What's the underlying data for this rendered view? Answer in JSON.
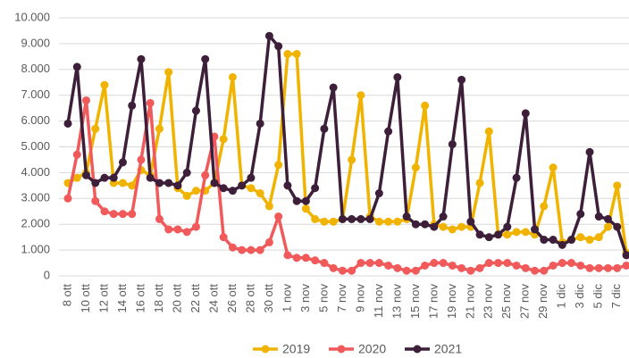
{
  "chart_data": {
    "type": "line",
    "categories": [
      "8 ott",
      null,
      "10 ott",
      null,
      "12 ott",
      null,
      "14 ott",
      null,
      "16 ott",
      null,
      "18 ott",
      null,
      "20 ott",
      null,
      "22 ott",
      null,
      "24 ott",
      null,
      "26 ott",
      null,
      "28 ott",
      null,
      "30 ott",
      null,
      "1 nov",
      null,
      "3 nov",
      null,
      "5 nov",
      null,
      "7 nov",
      null,
      "9 nov",
      null,
      "11 nov",
      null,
      "13 nov",
      null,
      "15 nov",
      null,
      "17 nov",
      null,
      "19 nov",
      null,
      "21 nov",
      null,
      "23 nov",
      null,
      "25 nov",
      null,
      "27 nov",
      null,
      "29 nov",
      null,
      "1 dic",
      null,
      "3 dic",
      null,
      "5 dic",
      null,
      "7 dic",
      null
    ],
    "series": [
      {
        "name": "2019",
        "color": "#f0b400",
        "values": [
          3600,
          3800,
          4000,
          5700,
          7400,
          3600,
          3600,
          3500,
          4100,
          3900,
          5700,
          7900,
          3400,
          3100,
          3300,
          3300,
          3600,
          5300,
          7700,
          3500,
          3400,
          3200,
          2700,
          4300,
          8600,
          8600,
          2600,
          2200,
          2100,
          2100,
          2200,
          4500,
          7000,
          2300,
          2100,
          2100,
          2100,
          2200,
          4200,
          6600,
          2000,
          1900,
          1800,
          1900,
          1900,
          3600,
          5600,
          1600,
          1600,
          1700,
          1700,
          1600,
          2700,
          4200,
          1300,
          1400,
          1500,
          1400,
          1500,
          1900,
          3500,
          900
        ]
      },
      {
        "name": "2020",
        "color": "#f05a5a",
        "values": [
          3000,
          4700,
          6800,
          2900,
          2500,
          2400,
          2400,
          2400,
          4500,
          6700,
          2200,
          1800,
          1800,
          1700,
          1900,
          3900,
          5400,
          1500,
          1100,
          1000,
          1000,
          1000,
          1300,
          2300,
          800,
          700,
          700,
          600,
          500,
          300,
          200,
          200,
          500,
          500,
          500,
          400,
          300,
          200,
          200,
          400,
          500,
          500,
          400,
          300,
          200,
          300,
          500,
          500,
          500,
          400,
          300,
          200,
          200,
          400,
          500,
          500,
          400,
          300,
          300,
          300,
          300,
          400
        ]
      },
      {
        "name": "2021",
        "color": "#3d1f3a",
        "values": [
          5900,
          8100,
          3900,
          3600,
          3800,
          3800,
          4400,
          6600,
          8400,
          3800,
          3600,
          3600,
          3500,
          4000,
          6400,
          8400,
          3600,
          3400,
          3300,
          3500,
          3800,
          5900,
          9300,
          8900,
          3500,
          2900,
          2900,
          3400,
          5700,
          7300,
          2200,
          2200,
          2200,
          2200,
          3200,
          5600,
          7700,
          2300,
          2000,
          2000,
          1900,
          2300,
          5100,
          7600,
          2100,
          1600,
          1500,
          1600,
          1900,
          3800,
          6300,
          1800,
          1400,
          1400,
          1200,
          1400,
          2400,
          4800,
          2300,
          2200,
          1900,
          800
        ]
      }
    ],
    "ylim": [
      0,
      10000
    ],
    "yticks": [
      {
        "value": 0,
        "label": "0"
      },
      {
        "value": 1000,
        "label": "1.000"
      },
      {
        "value": 2000,
        "label": "2.000"
      },
      {
        "value": 3000,
        "label": "3.000"
      },
      {
        "value": 4000,
        "label": "4.000"
      },
      {
        "value": 5000,
        "label": "5.000"
      },
      {
        "value": 6000,
        "label": "6.000"
      },
      {
        "value": 7000,
        "label": "7.000"
      },
      {
        "value": 8000,
        "label": "8.000"
      },
      {
        "value": 9000,
        "label": "9.000"
      },
      {
        "value": 10000,
        "label": "10.000"
      }
    ],
    "grid": true,
    "legend": "bottom"
  }
}
